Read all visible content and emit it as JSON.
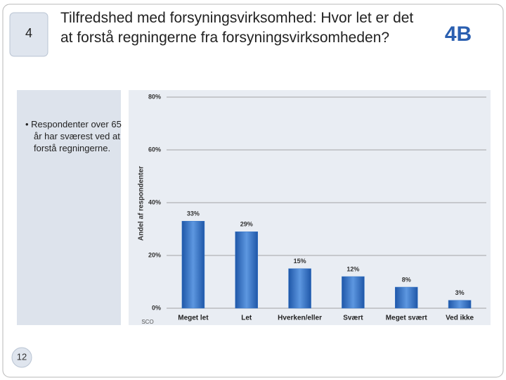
{
  "slide": {
    "number": "4",
    "title": "Tilfredshed med forsyningsvirksomhed: Hvor let er det at forstå regningerne fra forsyningsvirksomheden?",
    "bullet": "Respondenter over 65 år har sværest ved at forstå regningerne.",
    "page": "12",
    "logo": "4B",
    "source": "SCO"
  },
  "chart_data": {
    "type": "bar",
    "y_label": "Andel af respondenter",
    "categories": [
      "Meget let",
      "Let",
      "Hverken/eller",
      "Svært",
      "Meget svært",
      "Ved ikke"
    ],
    "values": [
      33,
      29,
      15,
      12,
      8,
      3
    ],
    "value_labels": [
      "33%",
      "29%",
      "15%",
      "12%",
      "8%",
      "3%"
    ],
    "color": "#3a78c8",
    "ylim": [
      0,
      80
    ],
    "yticks": [
      {
        "value": 0,
        "label": "0%"
      },
      {
        "value": 20,
        "label": "20%"
      },
      {
        "value": 40,
        "label": "40%"
      },
      {
        "value": 60,
        "label": "60%"
      },
      {
        "value": 80,
        "label": "80%"
      }
    ],
    "grid": true
  }
}
